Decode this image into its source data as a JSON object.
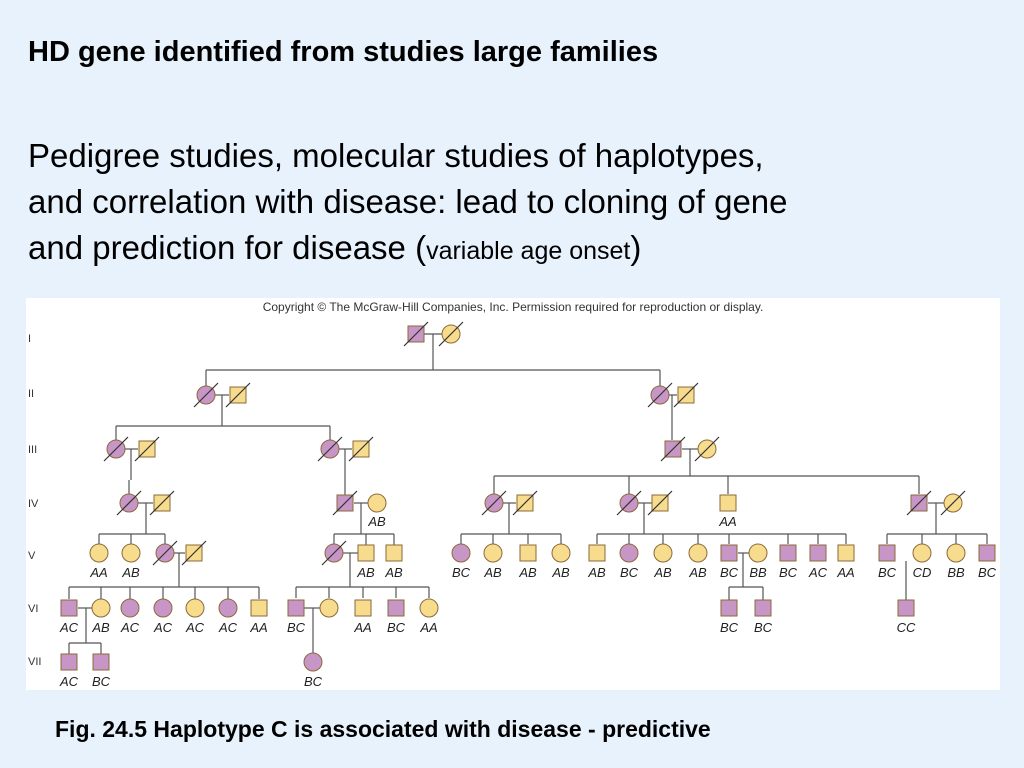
{
  "title": "HD gene identified from studies large families",
  "body": {
    "line1": "Pedigree studies, molecular studies of haplotypes,",
    "line2": "and correlation with disease: lead to cloning of gene",
    "line3_main": "and prediction for disease (",
    "line3_small": "variable age onset",
    "line3_close": ")"
  },
  "figure": {
    "copyright": "Copyright © The McGraw-Hill Companies, Inc. Permission required for reproduction or display.",
    "generations": [
      "I",
      "II",
      "III",
      "IV",
      "V",
      "VI",
      "VII"
    ],
    "colors": {
      "affected": "#c896c6",
      "unaffected": "#f7dc8e",
      "stroke": "#8a6a3a",
      "line": "#555555"
    },
    "haplotypes": {
      "gIV": [
        "AB",
        "AA"
      ],
      "gV": [
        "AA",
        "AB",
        "AB",
        "AB",
        "BC",
        "AB",
        "AB",
        "AB",
        "AB",
        "BC",
        "AB",
        "AB",
        "BC",
        "BB",
        "BC",
        "AC",
        "AA",
        "BC",
        "CD",
        "BB",
        "BC"
      ],
      "gVI": [
        "AC",
        "AB",
        "AC",
        "AC",
        "AC",
        "AC",
        "AA",
        "BC",
        "AA",
        "BC",
        "AA",
        "BC",
        "BC",
        "CC"
      ],
      "gVII": [
        "AC",
        "BC",
        "BC"
      ]
    }
  },
  "caption": "Fig. 24.5 Haplotype C is associated with disease - predictive"
}
